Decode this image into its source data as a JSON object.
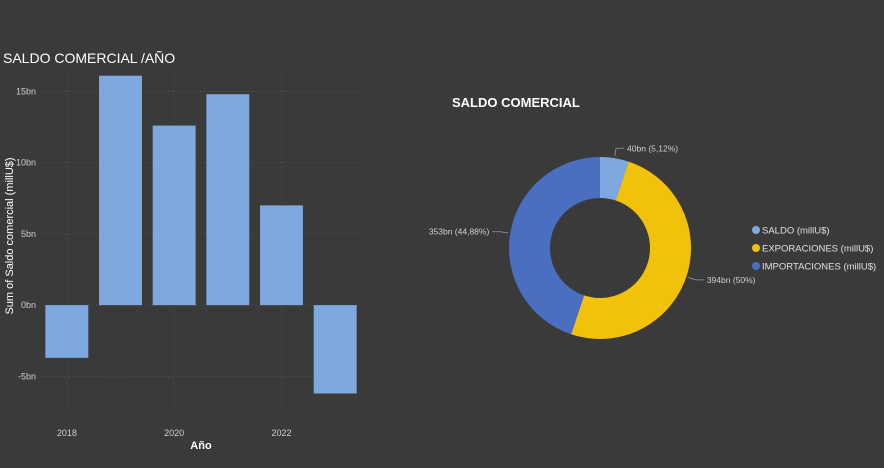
{
  "chart_data": [
    {
      "type": "bar",
      "title": "SALDO COMERCIAL /AÑO",
      "xlabel": "Año",
      "ylabel": "Sum of Saldo comercial (millU$)",
      "categories": [
        "2018",
        "2019",
        "2020",
        "2021",
        "2022",
        "2023"
      ],
      "x_tick_labels": [
        "2018",
        "2020",
        "2022"
      ],
      "series": [
        {
          "values": [
            -3.7,
            16.1,
            12.6,
            14.8,
            7.0,
            -6.2
          ]
        }
      ],
      "y_ticks": [
        -5,
        0,
        5,
        10,
        15
      ],
      "y_tick_labels": [
        "-5bn",
        "0bn",
        "5bn",
        "10bn",
        "15bn"
      ],
      "ylim": [
        -7.5,
        16.5
      ],
      "grid": true,
      "color": "#7ea8e0"
    },
    {
      "type": "pie",
      "variant": "donut",
      "title": "SALDO COMERCIAL",
      "slices": [
        {
          "name": "SALDO (millU$)",
          "value": 40,
          "label": "40bn (5,12%)",
          "color": "#7ea8e0"
        },
        {
          "name": "EXPORACIONES (millU$)",
          "value": 394,
          "label": "394bn (50%)",
          "color": "#f2c10a"
        },
        {
          "name": "IMPORTACIONES (millU$)",
          "value": 353,
          "label": "353bn (44,88%)",
          "color": "#4a6fc1"
        }
      ],
      "legend_position": "right"
    }
  ]
}
